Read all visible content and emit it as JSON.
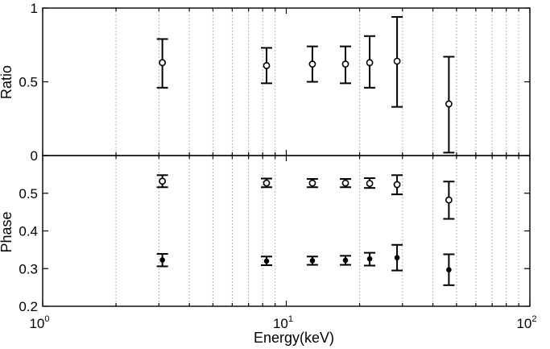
{
  "chart_data": [
    {
      "type": "scatter",
      "panel": "top",
      "ylabel": "Ratio",
      "xscale": "log",
      "xlim": [
        1,
        100
      ],
      "ylim": [
        0,
        1
      ],
      "yticks": [
        {
          "value": 0,
          "label": "0"
        },
        {
          "value": 0.5,
          "label": "0.5"
        },
        {
          "value": 1,
          "label": "1"
        }
      ],
      "grid": "vertical dotted at log minor ticks",
      "series": [
        {
          "marker": "open-circle",
          "points": [
            {
              "x": 3.1,
              "y": 0.63,
              "ylo": 0.46,
              "yhi": 0.79
            },
            {
              "x": 8.3,
              "y": 0.61,
              "ylo": 0.49,
              "yhi": 0.73
            },
            {
              "x": 12.8,
              "y": 0.62,
              "ylo": 0.5,
              "yhi": 0.74
            },
            {
              "x": 17.5,
              "y": 0.62,
              "ylo": 0.49,
              "yhi": 0.74
            },
            {
              "x": 22.0,
              "y": 0.63,
              "ylo": 0.46,
              "yhi": 0.81
            },
            {
              "x": 28.5,
              "y": 0.64,
              "ylo": 0.33,
              "yhi": 0.94
            },
            {
              "x": 46.5,
              "y": 0.35,
              "ylo": 0.02,
              "yhi": 0.67
            }
          ]
        }
      ]
    },
    {
      "type": "scatter",
      "panel": "bottom",
      "ylabel": "Phase",
      "xlabel": "Energy(keV)",
      "xscale": "log",
      "xlim": [
        1,
        100
      ],
      "ylim": [
        0.2,
        0.6
      ],
      "xticks": [
        {
          "value": 1,
          "base": "10",
          "exp": "0"
        },
        {
          "value": 10,
          "base": "10",
          "exp": "1"
        },
        {
          "value": 100,
          "base": "10",
          "exp": "2"
        }
      ],
      "yticks": [
        {
          "value": 0.2,
          "label": "0.2"
        },
        {
          "value": 0.3,
          "label": "0.3"
        },
        {
          "value": 0.4,
          "label": "0.4"
        },
        {
          "value": 0.5,
          "label": "0.5"
        }
      ],
      "grid": "vertical dotted at log minor ticks",
      "series": [
        {
          "marker": "open-circle",
          "points": [
            {
              "x": 3.1,
              "y": 0.532,
              "ylo": 0.516,
              "yhi": 0.548
            },
            {
              "x": 8.3,
              "y": 0.527,
              "ylo": 0.516,
              "yhi": 0.539
            },
            {
              "x": 12.8,
              "y": 0.527,
              "ylo": 0.516,
              "yhi": 0.538
            },
            {
              "x": 17.5,
              "y": 0.527,
              "ylo": 0.516,
              "yhi": 0.538
            },
            {
              "x": 22.0,
              "y": 0.526,
              "ylo": 0.514,
              "yhi": 0.54
            },
            {
              "x": 28.5,
              "y": 0.523,
              "ylo": 0.497,
              "yhi": 0.548
            },
            {
              "x": 46.5,
              "y": 0.482,
              "ylo": 0.432,
              "yhi": 0.531
            }
          ]
        },
        {
          "marker": "filled-circle",
          "points": [
            {
              "x": 3.1,
              "y": 0.323,
              "ylo": 0.306,
              "yhi": 0.339
            },
            {
              "x": 8.3,
              "y": 0.32,
              "ylo": 0.309,
              "yhi": 0.332
            },
            {
              "x": 12.8,
              "y": 0.321,
              "ylo": 0.31,
              "yhi": 0.332
            },
            {
              "x": 17.5,
              "y": 0.322,
              "ylo": 0.31,
              "yhi": 0.334
            },
            {
              "x": 22.0,
              "y": 0.326,
              "ylo": 0.308,
              "yhi": 0.342
            },
            {
              "x": 28.5,
              "y": 0.329,
              "ylo": 0.295,
              "yhi": 0.363
            },
            {
              "x": 46.5,
              "y": 0.297,
              "ylo": 0.256,
              "yhi": 0.338
            }
          ]
        }
      ]
    }
  ]
}
